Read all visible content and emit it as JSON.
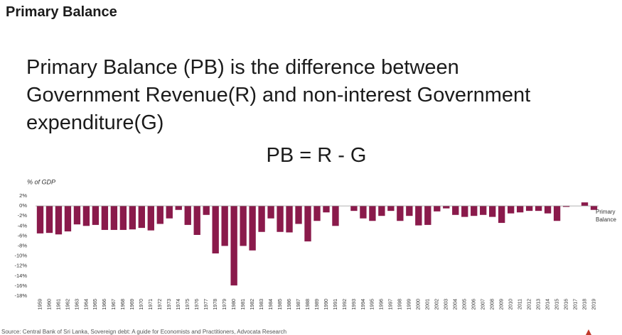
{
  "title": "Primary Balance",
  "body": [
    "Primary Balance (PB) is the difference between",
    "Government Revenue(R) and non-interest Government",
    "expenditure(G)"
  ],
  "formula": "PB = R - G",
  "footer": "Source: Central Bank of Sri Lanka, Sovereign debt: A guide for Economists and Practitioners, Advocata Research",
  "chart_data": {
    "type": "bar",
    "ylabel": "% of GDP",
    "categories": [
      "1959",
      "1960",
      "1961",
      "1962",
      "1963",
      "1964",
      "1965",
      "1966",
      "1967",
      "1968",
      "1969",
      "1970",
      "1971",
      "1972",
      "1973",
      "1974",
      "1975",
      "1976",
      "1977",
      "1978",
      "1979",
      "1980",
      "1981",
      "1982",
      "1983",
      "1984",
      "1985",
      "1986",
      "1987",
      "1988",
      "1989",
      "1990",
      "1991",
      "1992",
      "1993",
      "1994",
      "1995",
      "1996",
      "1997",
      "1998",
      "1999",
      "2000",
      "2001",
      "2002",
      "2003",
      "2004",
      "2005",
      "2006",
      "2007",
      "2008",
      "2009",
      "2010",
      "2011",
      "2012",
      "2013",
      "2014",
      "2015",
      "2016",
      "2017",
      "2018",
      "2019"
    ],
    "series": [
      {
        "name": "Primary Balance",
        "color": "#8a1a4b",
        "values": [
          -5.5,
          -5.4,
          -5.7,
          -5.1,
          -3.7,
          -4.0,
          -3.8,
          -4.8,
          -4.8,
          -4.8,
          -4.7,
          -4.4,
          -4.9,
          -3.6,
          -2.5,
          -0.8,
          -3.8,
          -5.8,
          -1.8,
          -9.5,
          -8.0,
          -15.9,
          -8.0,
          -8.9,
          -5.2,
          -2.5,
          -5.2,
          -5.3,
          -3.6,
          -7.1,
          -3.0,
          -1.3,
          -4.0,
          0,
          -1.0,
          -2.5,
          -3.0,
          -2.0,
          -1.0,
          -3.0,
          -2.0,
          -3.9,
          -3.8,
          -1.1,
          -0.5,
          -1.8,
          -2.2,
          -2.0,
          -1.8,
          -2.2,
          -3.4,
          -1.5,
          -1.3,
          -1.0,
          -1.0,
          -1.5,
          -3.0,
          -0.2,
          0,
          0.7,
          -0.8
        ]
      }
    ],
    "ylim": [
      -18,
      2
    ],
    "yticks": [
      {
        "value": 2,
        "label": "2%"
      },
      {
        "value": 0,
        "label": "0%"
      },
      {
        "value": -2,
        "label": "-2%"
      },
      {
        "value": -4,
        "label": "-4%"
      },
      {
        "value": -6,
        "label": "-6%"
      },
      {
        "value": -8,
        "label": "-8%"
      },
      {
        "value": -10,
        "label": "-10%"
      },
      {
        "value": -12,
        "label": "-12%"
      },
      {
        "value": -14,
        "label": "-14%"
      },
      {
        "value": -16,
        "label": "-16%"
      },
      {
        "value": -18,
        "label": "-18%"
      }
    ],
    "grid": false
  }
}
